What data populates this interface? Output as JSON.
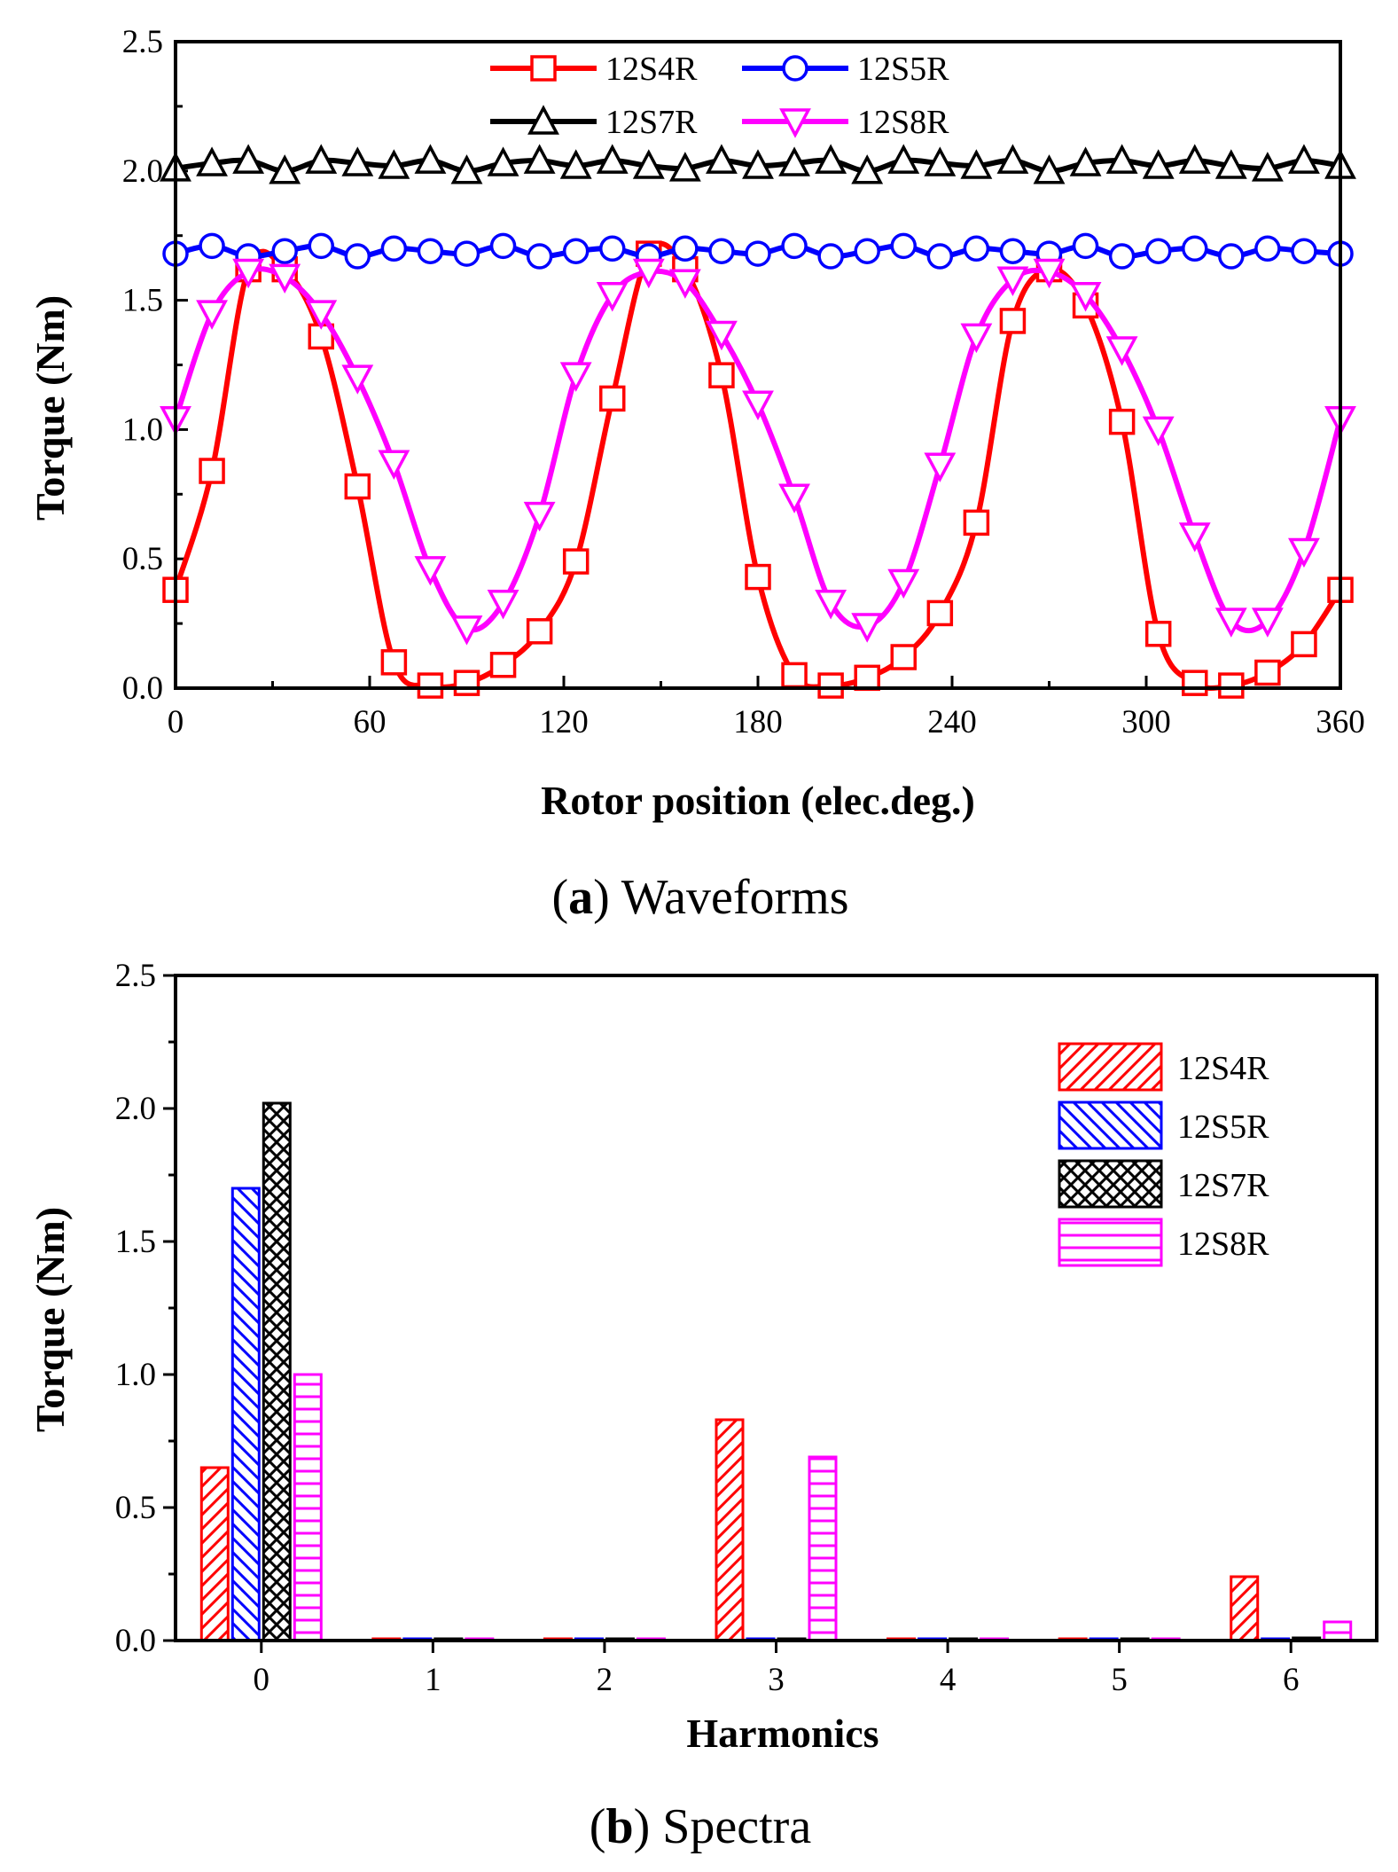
{
  "chart_data": [
    {
      "type": "line",
      "caption": {
        "label": "a",
        "text": "Waveforms"
      },
      "xlabel": "Rotor position (elec.deg.)",
      "ylabel": "Torque (Nm)",
      "xlim": [
        0,
        360
      ],
      "ylim": [
        0,
        2.5
      ],
      "xticks": [
        "0",
        "60",
        "120",
        "180",
        "240",
        "300",
        "360"
      ],
      "yticks": [
        "0.0",
        "0.5",
        "1.0",
        "1.5",
        "2.0",
        "2.5"
      ],
      "legend": "top-center",
      "series": [
        {
          "name": "12S4R",
          "color": "#ff0000",
          "marker": "square",
          "x": [
            0,
            11.25,
            22.5,
            33.75,
            45,
            56.25,
            67.5,
            78.75,
            90,
            101.25,
            112.5,
            123.75,
            135,
            146.25,
            157.5,
            168.75,
            180,
            191.25,
            202.5,
            213.75,
            225,
            236.25,
            247.5,
            258.75,
            270,
            281.25,
            292.5,
            303.75,
            315,
            326.25,
            337.5,
            348.75,
            360
          ],
          "y": [
            0.38,
            0.84,
            1.62,
            1.62,
            1.36,
            0.78,
            0.1,
            0.01,
            0.02,
            0.09,
            0.22,
            0.49,
            1.12,
            1.68,
            1.62,
            1.21,
            0.43,
            0.05,
            0.01,
            0.04,
            0.12,
            0.29,
            0.64,
            1.42,
            1.62,
            1.48,
            1.03,
            0.21,
            0.02,
            0.01,
            0.06,
            0.17,
            0.38
          ]
        },
        {
          "name": "12S5R",
          "color": "#0000ff",
          "marker": "circle",
          "x": [
            0,
            11.25,
            22.5,
            33.75,
            45,
            56.25,
            67.5,
            78.75,
            90,
            101.25,
            112.5,
            123.75,
            135,
            146.25,
            157.5,
            168.75,
            180,
            191.25,
            202.5,
            213.75,
            225,
            236.25,
            247.5,
            258.75,
            270,
            281.25,
            292.5,
            303.75,
            315,
            326.25,
            337.5,
            348.75,
            360
          ],
          "y": [
            1.68,
            1.71,
            1.67,
            1.69,
            1.71,
            1.67,
            1.7,
            1.69,
            1.68,
            1.71,
            1.67,
            1.69,
            1.7,
            1.67,
            1.7,
            1.69,
            1.68,
            1.71,
            1.67,
            1.69,
            1.71,
            1.67,
            1.7,
            1.69,
            1.68,
            1.71,
            1.67,
            1.69,
            1.7,
            1.67,
            1.7,
            1.69,
            1.68
          ]
        },
        {
          "name": "12S7R",
          "color": "#000000",
          "marker": "triangle-up",
          "x": [
            0,
            11.25,
            22.5,
            33.75,
            45,
            56.25,
            67.5,
            78.75,
            90,
            101.25,
            112.5,
            123.75,
            135,
            146.25,
            157.5,
            168.75,
            180,
            191.25,
            202.5,
            213.75,
            225,
            236.25,
            247.5,
            258.75,
            270,
            281.25,
            292.5,
            303.75,
            315,
            326.25,
            337.5,
            348.75,
            360
          ],
          "y": [
            2.01,
            2.03,
            2.04,
            2.0,
            2.04,
            2.03,
            2.02,
            2.04,
            2.0,
            2.03,
            2.04,
            2.02,
            2.04,
            2.02,
            2.01,
            2.04,
            2.02,
            2.03,
            2.04,
            2.0,
            2.04,
            2.03,
            2.02,
            2.04,
            2.0,
            2.03,
            2.04,
            2.02,
            2.04,
            2.02,
            2.01,
            2.04,
            2.02
          ]
        },
        {
          "name": "12S8R",
          "color": "#ff00ff",
          "marker": "triangle-down",
          "x": [
            0,
            11.25,
            22.5,
            33.75,
            45,
            56.25,
            67.5,
            78.75,
            90,
            101.25,
            112.5,
            123.75,
            135,
            146.25,
            157.5,
            168.75,
            180,
            191.25,
            202.5,
            213.75,
            225,
            236.25,
            247.5,
            258.75,
            270,
            281.25,
            292.5,
            303.75,
            315,
            326.25,
            337.5,
            348.75,
            360
          ],
          "y": [
            1.04,
            1.45,
            1.61,
            1.59,
            1.45,
            1.2,
            0.87,
            0.46,
            0.23,
            0.33,
            0.67,
            1.21,
            1.52,
            1.61,
            1.57,
            1.37,
            1.1,
            0.74,
            0.33,
            0.24,
            0.41,
            0.86,
            1.36,
            1.58,
            1.61,
            1.52,
            1.31,
            1.0,
            0.59,
            0.26,
            0.26,
            0.53,
            1.04
          ]
        }
      ]
    },
    {
      "type": "bar",
      "caption": {
        "label": "b",
        "text": "Spectra"
      },
      "xlabel": "Harmonics",
      "ylabel": "Torque (Nm)",
      "categories": [
        "0",
        "1",
        "2",
        "3",
        "4",
        "5",
        "6"
      ],
      "yticks": [
        "0.0",
        "0.5",
        "1.0",
        "1.5",
        "2.0",
        "2.5"
      ],
      "ylim": [
        0,
        2.5
      ],
      "legend": "top-right",
      "series": [
        {
          "name": "12S4R",
          "color": "#ff0000",
          "pattern": "diag-right",
          "values": [
            0.65,
            0.0,
            0.0,
            0.83,
            0.0,
            0.0,
            0.24
          ]
        },
        {
          "name": "12S5R",
          "color": "#0000ff",
          "pattern": "diag-left",
          "values": [
            1.7,
            0.0,
            0.0,
            0.0,
            0.0,
            0.0,
            0.0
          ]
        },
        {
          "name": "12S7R",
          "color": "#000000",
          "pattern": "crosshatch",
          "values": [
            2.02,
            0.0,
            0.0,
            0.0,
            0.0,
            0.0,
            0.01
          ]
        },
        {
          "name": "12S8R",
          "color": "#ff00ff",
          "pattern": "horizontal",
          "values": [
            1.0,
            0.0,
            0.0,
            0.69,
            0.0,
            0.0,
            0.07
          ]
        }
      ]
    }
  ]
}
